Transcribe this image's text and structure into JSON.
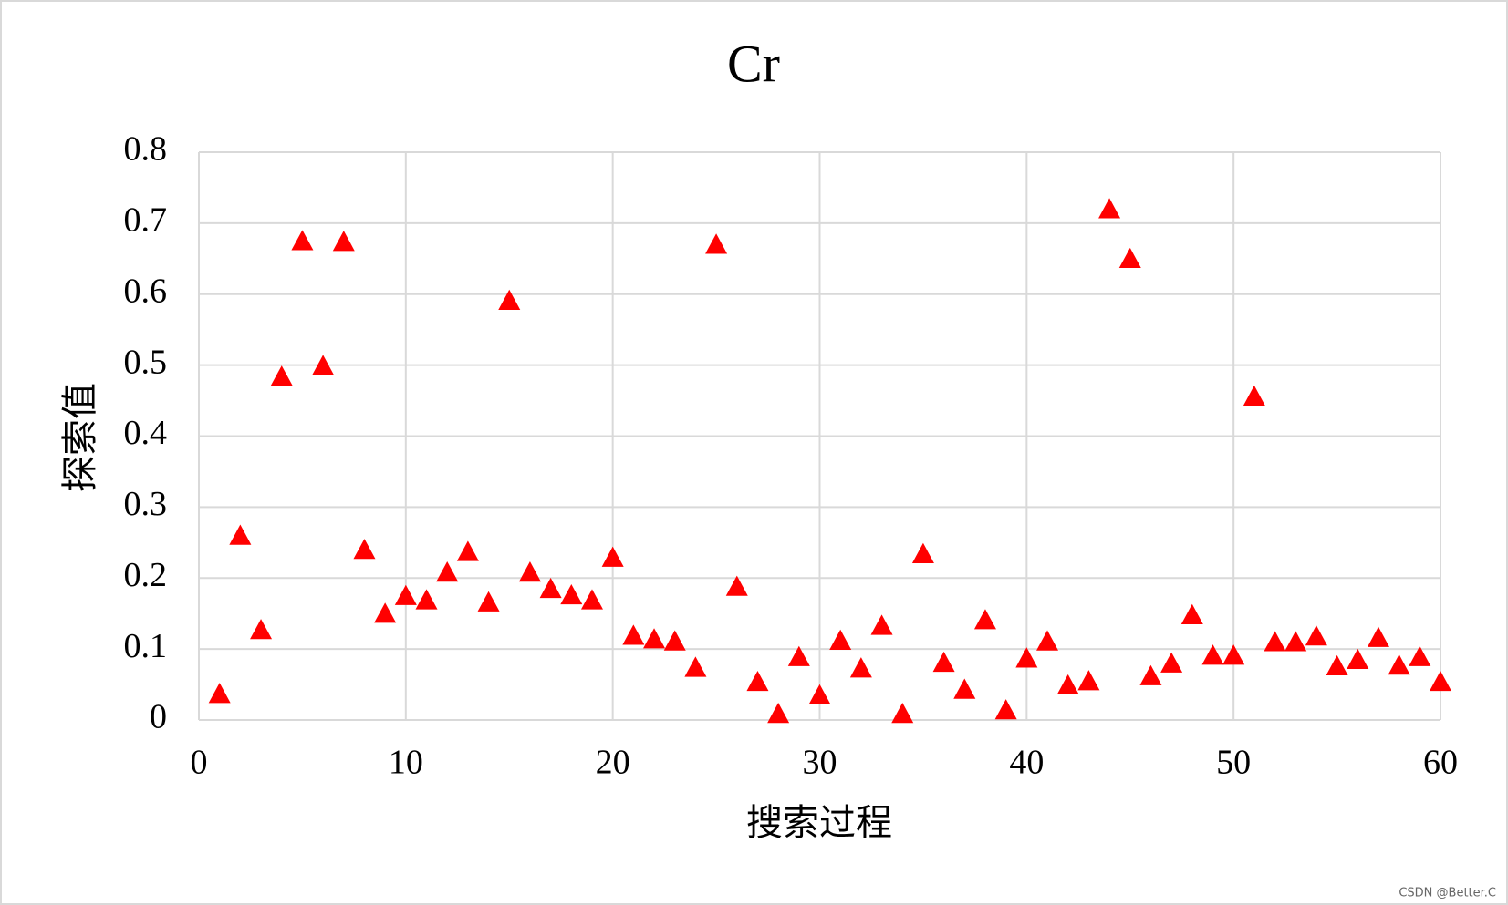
{
  "chart_data": {
    "type": "scatter",
    "title": "Cr",
    "x_label": "搜索过程",
    "y_label": "探索值",
    "watermark": "CSDN @Better.C",
    "marker": "triangle",
    "color": "#ff0000",
    "grid": true,
    "xlim": [
      0,
      60
    ],
    "xticks": [
      0,
      10,
      20,
      30,
      40,
      50,
      60
    ],
    "ylim": [
      0,
      0.8
    ],
    "yticks": [
      0,
      0.1,
      0.2,
      0.3,
      0.4,
      0.5,
      0.6,
      0.7,
      0.8
    ],
    "x": [
      1,
      2,
      3,
      4,
      5,
      6,
      7,
      8,
      9,
      10,
      11,
      12,
      13,
      14,
      15,
      16,
      17,
      18,
      19,
      20,
      21,
      22,
      23,
      24,
      25,
      26,
      27,
      28,
      29,
      30,
      31,
      32,
      33,
      34,
      35,
      36,
      37,
      38,
      39,
      40,
      41,
      42,
      43,
      44,
      45,
      46,
      47,
      48,
      49,
      50,
      51,
      52,
      53,
      54,
      55,
      56,
      57,
      58,
      59,
      60
    ],
    "values": [
      0.037,
      0.26,
      0.127,
      0.484,
      0.675,
      0.499,
      0.674,
      0.24,
      0.15,
      0.175,
      0.169,
      0.208,
      0.237,
      0.166,
      0.591,
      0.208,
      0.185,
      0.176,
      0.169,
      0.229,
      0.119,
      0.114,
      0.111,
      0.074,
      0.67,
      0.188,
      0.054,
      0.009,
      0.089,
      0.035,
      0.112,
      0.073,
      0.133,
      0.009,
      0.234,
      0.081,
      0.043,
      0.141,
      0.014,
      0.087,
      0.111,
      0.049,
      0.055,
      0.72,
      0.65,
      0.062,
      0.08,
      0.148,
      0.091,
      0.091,
      0.456,
      0.11,
      0.11,
      0.118,
      0.076,
      0.085,
      0.116,
      0.077,
      0.089,
      0.054
    ]
  }
}
